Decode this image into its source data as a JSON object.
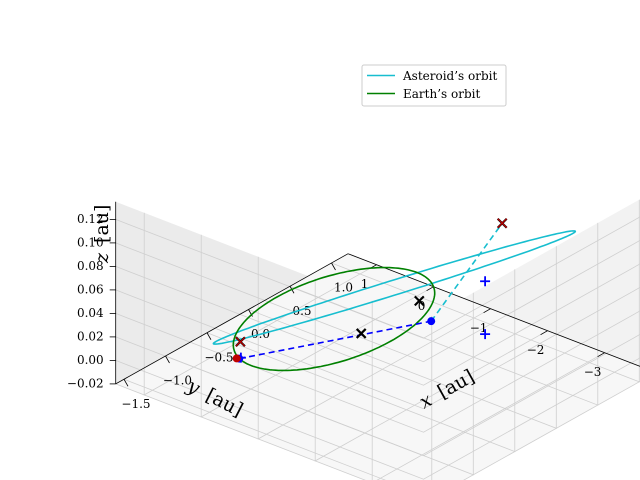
{
  "chart_data": {
    "type": "line",
    "projection": "3d",
    "grid": true,
    "legend_position": "upper-right",
    "axes": {
      "x": {
        "label_text": "[au]",
        "label_var": "x",
        "ticks": [
          -1.5,
          -1.0,
          -0.5,
          0.0,
          0.5,
          1.0
        ],
        "tick_labels": [
          "−1.5",
          "−1.0",
          "−0.5",
          "0.0",
          "0.5",
          "1.0"
        ],
        "lim": [
          -1.6,
          1.2
        ]
      },
      "y": {
        "label_text": "[au]",
        "label_var": "y",
        "ticks": [
          1,
          0,
          -1,
          -2,
          -3
        ],
        "tick_labels": [
          "1",
          "0",
          "−1",
          "−2",
          "−3"
        ],
        "lim": [
          -3.9,
          1.5
        ]
      },
      "z": {
        "label_text": "[au]",
        "label_var": "z",
        "ticks": [
          -0.02,
          0.0,
          0.02,
          0.04,
          0.06,
          0.08,
          0.1,
          0.12
        ],
        "tick_labels": [
          "−0.02",
          "0.00",
          "0.02",
          "0.04",
          "0.06",
          "0.08",
          "0.10",
          "0.12"
        ],
        "lim": [
          -0.02,
          0.135
        ]
      }
    },
    "series": [
      {
        "name": "Asteroid’s orbit",
        "color": "#17becf",
        "kind": "ellipse",
        "center": [
          -0.2,
          -1.35,
          0.06
        ],
        "a": [
          0.75,
          -2.05,
          0.055
        ],
        "b": [
          0.55,
          0.35,
          -0.015
        ]
      },
      {
        "name": "Earth’s orbit",
        "color": "#008000",
        "kind": "circle",
        "center": [
          0,
          0,
          0
        ],
        "radius": 1.0
      }
    ],
    "segments": [
      {
        "color": "#0000ff",
        "style": "dashed",
        "from": [
          -0.97,
          0.25,
          0.0
        ],
        "to": [
          0.45,
          -1.05,
          0.0
        ]
      },
      {
        "color": "#17becf",
        "style": "dashed",
        "from": [
          0.45,
          -1.05,
          0.0
        ],
        "to": [
          0.55,
          -2.15,
          0.1
        ]
      }
    ],
    "markers": [
      {
        "symbol": "x",
        "color": "#000000",
        "pos": [
          0.55,
          -2.15,
          0.1
        ]
      },
      {
        "symbol": "x",
        "color": "#000000",
        "pos": [
          -0.75,
          0.55,
          0.0
        ]
      },
      {
        "symbol": "x",
        "color": "#000000",
        "pos": [
          -0.05,
          -0.55,
          0.0
        ]
      },
      {
        "symbol": "x",
        "color": "#000000",
        "pos": [
          0.65,
          -0.55,
          0.0
        ]
      },
      {
        "symbol": "x",
        "color": "#c00000",
        "pos": [
          0.55,
          -2.15,
          0.1
        ]
      },
      {
        "symbol": "x",
        "color": "#c00000",
        "pos": [
          -0.75,
          0.55,
          0.0
        ]
      },
      {
        "symbol": "plus",
        "color": "#0000ff",
        "pos": [
          -0.95,
          0.25,
          0.0
        ]
      },
      {
        "symbol": "plus",
        "color": "#0000ff",
        "pos": [
          0.55,
          -1.85,
          0.0
        ]
      },
      {
        "symbol": "plus",
        "color": "#0000ff",
        "pos": [
          0.55,
          -1.85,
          0.045
        ]
      },
      {
        "symbol": "dot",
        "color": "#0000ff",
        "pos": [
          0.45,
          -1.05,
          0.0
        ]
      },
      {
        "symbol": "dot",
        "color": "#0000ff",
        "pos": [
          -0.97,
          0.25,
          0.0
        ]
      },
      {
        "symbol": "dot",
        "color": "#c00000",
        "pos": [
          -0.98,
          0.28,
          0.0
        ]
      }
    ]
  }
}
